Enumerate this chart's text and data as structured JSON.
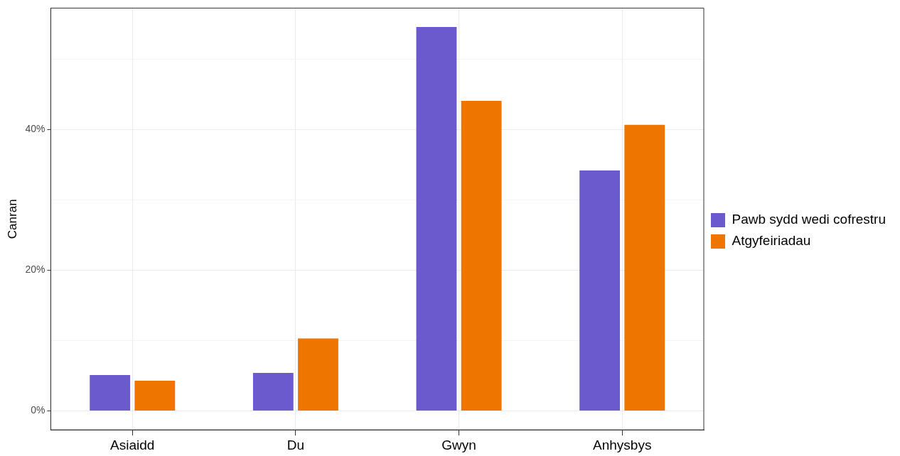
{
  "chart_data": {
    "type": "bar",
    "ylabel": "Canran",
    "categories": [
      "Asiaidd",
      "Du",
      "Gwyn",
      "Anhysbys"
    ],
    "series": [
      {
        "name": "Pawb sydd wedi cofrestru",
        "color": "#6a5acd",
        "values": [
          5.1,
          5.4,
          54.6,
          34.2
        ]
      },
      {
        "name": "Atgyfeiriadau",
        "color": "#ee7600",
        "values": [
          4.3,
          10.3,
          44.1,
          40.7
        ]
      }
    ],
    "ylim": [
      -2.7,
      57.3
    ],
    "yticks": [
      {
        "value": 0,
        "label": "0%"
      },
      {
        "value": 10,
        "label": null
      },
      {
        "value": 20,
        "label": "20%"
      },
      {
        "value": 30,
        "label": null
      },
      {
        "value": 40,
        "label": "40%"
      },
      {
        "value": 50,
        "label": null
      }
    ],
    "grid": true,
    "legend": "right"
  }
}
